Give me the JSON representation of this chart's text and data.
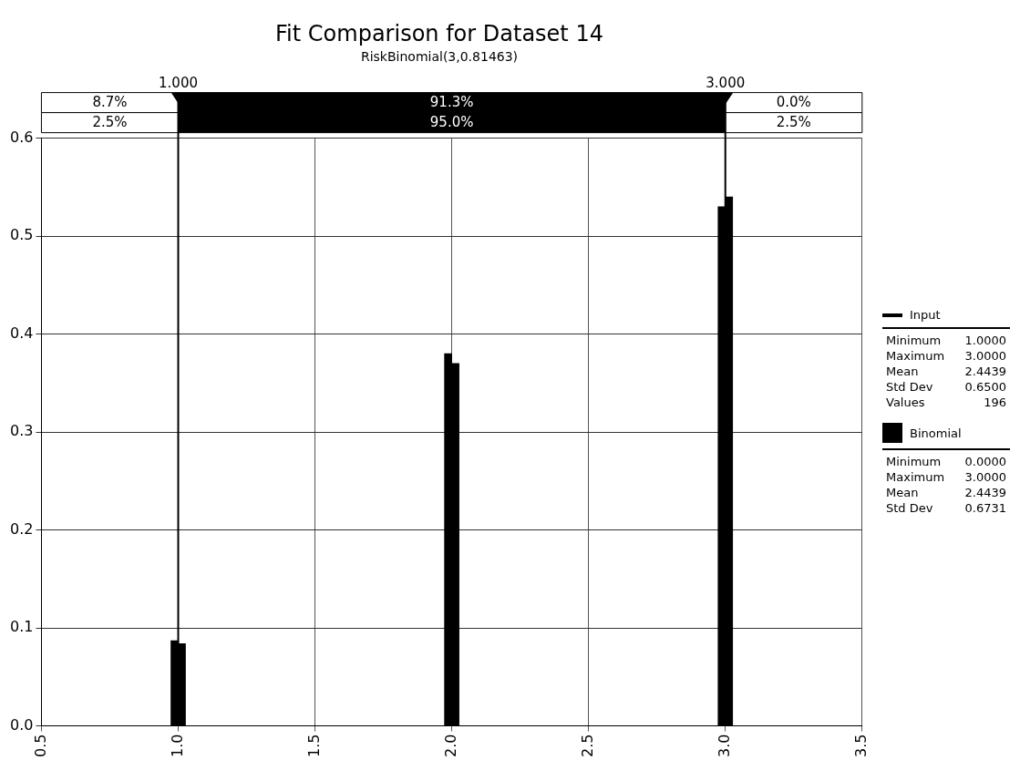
{
  "chart_data": {
    "type": "bar",
    "title": "Fit Comparison for Dataset 14",
    "subtitle": "RiskBinomial(3,0.81463)",
    "x": [
      1,
      2,
      3
    ],
    "series": [
      {
        "name": "Input",
        "color": "#000000",
        "values": [
          0.087,
          0.38,
          0.53
        ]
      },
      {
        "name": "Binomial",
        "color": "#000000",
        "values": [
          0.084,
          0.37,
          0.54
        ]
      }
    ],
    "xlim": [
      0.5,
      3.5
    ],
    "xticks": [
      {
        "value": 0.5,
        "label": "0.5"
      },
      {
        "value": 1,
        "label": "1.0"
      },
      {
        "value": 1.5,
        "label": "1.5"
      },
      {
        "value": 2,
        "label": "2.0"
      },
      {
        "value": 2.5,
        "label": "2.5"
      },
      {
        "value": 3,
        "label": "3.0"
      },
      {
        "value": 3.5,
        "label": "3.5"
      }
    ],
    "ylim": [
      0,
      0.6
    ],
    "yticks": [
      {
        "value": 0,
        "label": "0.0"
      },
      {
        "value": 0.1,
        "label": "0.1"
      },
      {
        "value": 0.2,
        "label": "0.2"
      },
      {
        "value": 0.3,
        "label": "0.3"
      },
      {
        "value": 0.4,
        "label": "0.4"
      },
      {
        "value": 0.5,
        "label": "0.5"
      },
      {
        "value": 0.6,
        "label": "0.6"
      }
    ],
    "grid": true,
    "legend": "right",
    "ref_lines": [
      {
        "axis": "x",
        "value": 1,
        "label": "1.000"
      },
      {
        "axis": "x",
        "value": 3,
        "label": "3.000"
      }
    ],
    "annotations": [
      "8.7%",
      "91.3%",
      "0.0%",
      "2.5%",
      "95.0%",
      "2.5%",
      "Minimum",
      "1.0000",
      "Maximum",
      "3.0000",
      "Mean",
      "2.4439",
      "Std Dev",
      "0.6500",
      "Values",
      "196",
      "Minimum",
      "0.0000",
      "Maximum",
      "3.0000",
      "Mean",
      "2.4439",
      "Std Dev",
      "0.6731"
    ]
  }
}
